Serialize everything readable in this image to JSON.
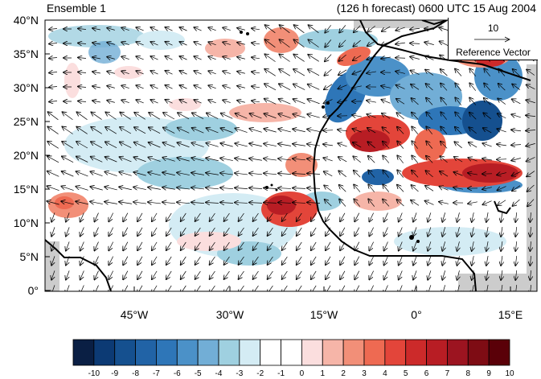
{
  "header": {
    "left_title": "Ensemble 1",
    "right_title": "(126 h forecast) 0600 UTC 15 Aug 2004"
  },
  "map": {
    "lat_labels": [
      "40°N",
      "35°N",
      "30°N",
      "25°N",
      "20°N",
      "15°N",
      "10°N",
      "5°N",
      "0°"
    ],
    "lon_labels": [
      "45°W",
      "30°W",
      "15°W",
      "0°",
      "15°E"
    ],
    "vector_color": "#000000",
    "coastline_color": "#000000",
    "missing_data_color": "#cccccc"
  },
  "reference_vector": {
    "magnitude": "10",
    "title": "Reference Vector"
  },
  "colorbar": {
    "labels": [
      "-10",
      "-9",
      "-8",
      "-7",
      "-6",
      "-5",
      "-4",
      "-3",
      "-2",
      "-1",
      "0",
      "1",
      "2",
      "3",
      "4",
      "5",
      "6",
      "7",
      "8",
      "9",
      "10"
    ],
    "colors": [
      "#0a1f44",
      "#0c3a74",
      "#15508f",
      "#2163a6",
      "#2e76b8",
      "#4b91c8",
      "#72aed6",
      "#9fd0e0",
      "#d4ecf4",
      "#ffffff",
      "#ffffff",
      "#fbdede",
      "#f6b5a8",
      "#f28f78",
      "#ee6a52",
      "#e3453a",
      "#cc2a2a",
      "#b81d24",
      "#9c1420",
      "#7e0c14",
      "#5a0008"
    ]
  }
}
